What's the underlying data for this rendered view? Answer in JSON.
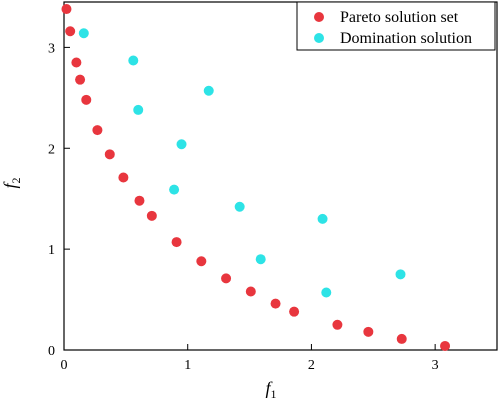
{
  "chart_data": {
    "type": "scatter",
    "title": "",
    "xlabel": "f",
    "xlabel_sub": "1",
    "ylabel": "f",
    "ylabel_sub": "2",
    "xlim": [
      0,
      3.5
    ],
    "ylim": [
      0,
      3.45
    ],
    "xticks": [
      0,
      1,
      2,
      3
    ],
    "xtick_labels": [
      "0",
      "1",
      "2",
      "3"
    ],
    "yticks": [
      0,
      1,
      2,
      3
    ],
    "ytick_labels": [
      "0",
      "1",
      "2",
      "3"
    ],
    "grid": false,
    "legend_position": "top-right",
    "series": [
      {
        "name": "Pareto solution set",
        "color": "#e8363e",
        "points": [
          {
            "x": 0.02,
            "y": 3.38
          },
          {
            "x": 0.05,
            "y": 3.16
          },
          {
            "x": 0.1,
            "y": 2.85
          },
          {
            "x": 0.13,
            "y": 2.68
          },
          {
            "x": 0.18,
            "y": 2.48
          },
          {
            "x": 0.27,
            "y": 2.18
          },
          {
            "x": 0.37,
            "y": 1.94
          },
          {
            "x": 0.48,
            "y": 1.71
          },
          {
            "x": 0.61,
            "y": 1.48
          },
          {
            "x": 0.71,
            "y": 1.33
          },
          {
            "x": 0.91,
            "y": 1.07
          },
          {
            "x": 1.11,
            "y": 0.88
          },
          {
            "x": 1.31,
            "y": 0.71
          },
          {
            "x": 1.51,
            "y": 0.58
          },
          {
            "x": 1.71,
            "y": 0.46
          },
          {
            "x": 1.86,
            "y": 0.38
          },
          {
            "x": 2.21,
            "y": 0.25
          },
          {
            "x": 2.46,
            "y": 0.18
          },
          {
            "x": 2.73,
            "y": 0.11
          },
          {
            "x": 3.08,
            "y": 0.04
          }
        ]
      },
      {
        "name": "Domination solution",
        "color": "#2de3e6",
        "points": [
          {
            "x": 0.16,
            "y": 3.14
          },
          {
            "x": 0.56,
            "y": 2.87
          },
          {
            "x": 0.6,
            "y": 2.38
          },
          {
            "x": 1.17,
            "y": 2.57
          },
          {
            "x": 0.95,
            "y": 2.04
          },
          {
            "x": 0.89,
            "y": 1.59
          },
          {
            "x": 1.42,
            "y": 1.42
          },
          {
            "x": 2.09,
            "y": 1.3
          },
          {
            "x": 1.59,
            "y": 0.9
          },
          {
            "x": 2.12,
            "y": 0.57
          },
          {
            "x": 2.72,
            "y": 0.75
          }
        ]
      }
    ]
  }
}
